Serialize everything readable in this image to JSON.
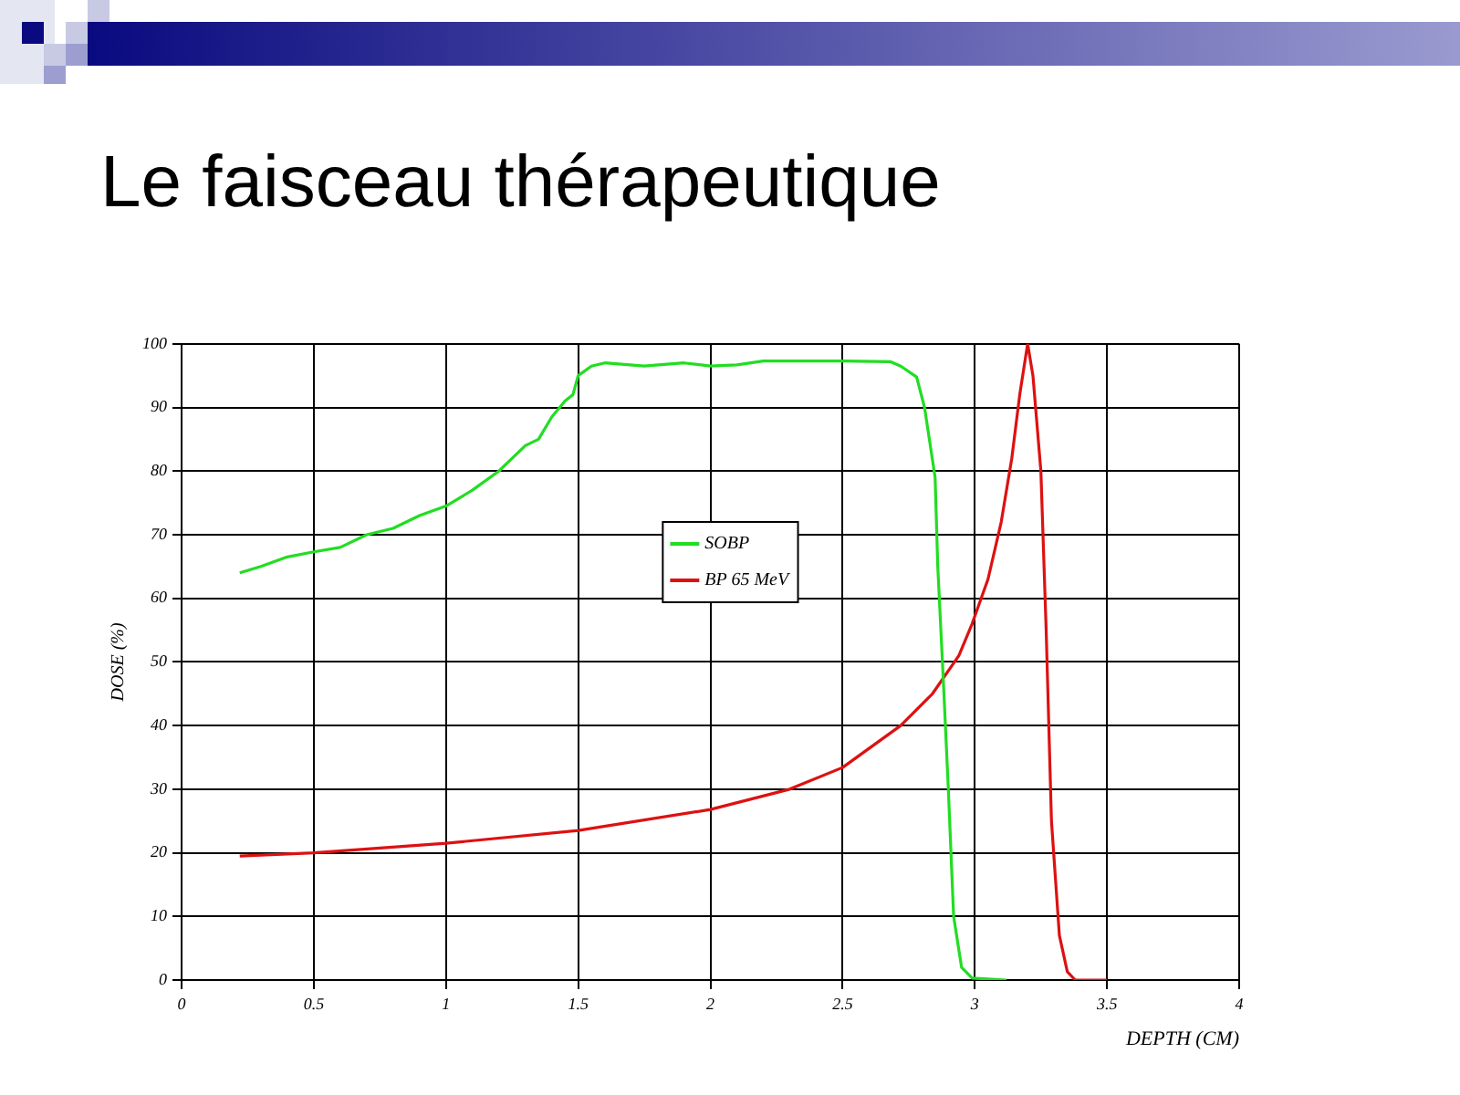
{
  "chart_data": {
    "type": "line",
    "title": "Le faisceau thérapeutique",
    "xlabel": "DEPTH (CM)",
    "ylabel": "DOSE (%)",
    "xlim": [
      0,
      4
    ],
    "xticks": [
      0,
      0.5,
      1,
      1.5,
      2,
      2.5,
      3,
      3.5,
      4
    ],
    "ylim": [
      0,
      100
    ],
    "yticks": [
      0,
      10,
      20,
      30,
      40,
      50,
      60,
      70,
      80,
      90,
      100
    ],
    "grid": true,
    "legend": "center",
    "marker": "none",
    "line_style": "solid",
    "series": [
      {
        "name": "SOBP",
        "color": "#22dd22",
        "x": [
          0.22,
          0.3,
          0.4,
          0.5,
          0.6,
          0.7,
          0.8,
          0.9,
          1.0,
          1.1,
          1.2,
          1.3,
          1.35,
          1.4,
          1.45,
          1.48,
          1.5,
          1.55,
          1.6,
          1.75,
          1.9,
          2.0,
          2.1,
          2.2,
          2.5,
          2.68,
          2.72,
          2.78,
          2.81,
          2.85,
          2.86,
          2.88,
          2.9,
          2.92,
          2.95,
          2.99,
          3.12
        ],
        "values": [
          64,
          65,
          66.5,
          67.3,
          68,
          70,
          71,
          73,
          74.5,
          77,
          80,
          84,
          85,
          88.5,
          91,
          92,
          95,
          96.5,
          97,
          96.5,
          97,
          96.5,
          96.7,
          97.3,
          97.3,
          97.2,
          96.5,
          94.8,
          90,
          79,
          65,
          48,
          30,
          10,
          2,
          0.3,
          0
        ]
      },
      {
        "name": "BP 65 MeV",
        "color": "#dd1111",
        "x": [
          0.22,
          0.5,
          1.0,
          1.5,
          2.0,
          2.3,
          2.5,
          2.72,
          2.84,
          2.94,
          2.99,
          3.05,
          3.1,
          3.14,
          3.17,
          3.2,
          3.22,
          3.25,
          3.27,
          3.29,
          3.32,
          3.35,
          3.38,
          3.5
        ],
        "values": [
          19.5,
          20,
          21.5,
          23.5,
          26.8,
          30,
          33.4,
          40,
          45,
          51,
          56,
          63,
          72,
          82,
          92,
          100,
          95,
          80,
          55,
          25,
          7,
          1.3,
          0,
          0
        ]
      }
    ]
  }
}
